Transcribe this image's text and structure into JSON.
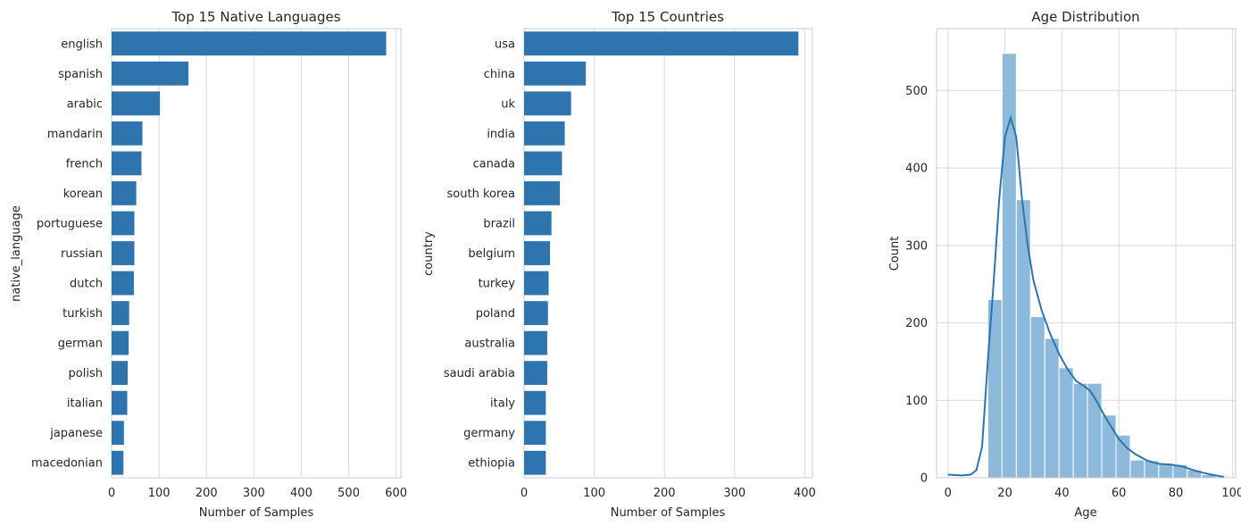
{
  "chart_data": [
    {
      "type": "bar",
      "orientation": "horizontal",
      "title": "Top 15 Native Languages",
      "xlabel": "Number of Samples",
      "ylabel": "native_language",
      "categories": [
        "english",
        "spanish",
        "arabic",
        "mandarin",
        "french",
        "korean",
        "portuguese",
        "russian",
        "dutch",
        "turkish",
        "german",
        "polish",
        "italian",
        "japanese",
        "macedonian"
      ],
      "values": [
        579,
        162,
        102,
        65,
        63,
        52,
        48,
        48,
        47,
        37,
        36,
        34,
        33,
        26,
        25
      ],
      "xlim": [
        0,
        610
      ],
      "xticks": [
        0,
        100,
        200,
        300,
        400,
        500,
        600
      ],
      "grid": true,
      "color": "#2e75b0"
    },
    {
      "type": "bar",
      "orientation": "horizontal",
      "title": "Top 15 Countries",
      "xlabel": "Number of Samples",
      "ylabel": "country",
      "categories": [
        "usa",
        "china",
        "uk",
        "india",
        "canada",
        "south korea",
        "brazil",
        "belgium",
        "turkey",
        "poland",
        "australia",
        "saudi arabia",
        "italy",
        "germany",
        "ethiopia"
      ],
      "values": [
        391,
        88,
        67,
        58,
        54,
        51,
        39,
        37,
        35,
        34,
        33,
        33,
        31,
        31,
        31
      ],
      "xlim": [
        0,
        411
      ],
      "xticks": [
        0,
        100,
        200,
        300,
        400
      ],
      "grid": true,
      "color": "#2e75b0"
    },
    {
      "type": "histogram",
      "title": "Age Distribution",
      "xlabel": "Age",
      "ylabel": "Count",
      "bins": [
        {
          "x0": 14,
          "x1": 19,
          "count": 230
        },
        {
          "x0": 19,
          "x1": 24,
          "count": 548
        },
        {
          "x0": 24,
          "x1": 29,
          "count": 359
        },
        {
          "x0": 29,
          "x1": 34,
          "count": 208
        },
        {
          "x0": 34,
          "x1": 39,
          "count": 180
        },
        {
          "x0": 39,
          "x1": 44,
          "count": 142
        },
        {
          "x0": 44,
          "x1": 49,
          "count": 122
        },
        {
          "x0": 49,
          "x1": 54,
          "count": 122
        },
        {
          "x0": 54,
          "x1": 59,
          "count": 81
        },
        {
          "x0": 59,
          "x1": 64,
          "count": 55
        },
        {
          "x0": 64,
          "x1": 69,
          "count": 23
        },
        {
          "x0": 69,
          "x1": 74,
          "count": 22
        },
        {
          "x0": 74,
          "x1": 79,
          "count": 19
        },
        {
          "x0": 79,
          "x1": 84,
          "count": 17
        },
        {
          "x0": 84,
          "x1": 89,
          "count": 10
        },
        {
          "x0": 89,
          "x1": 94,
          "count": 4
        },
        {
          "x0": 94,
          "x1": 97,
          "count": 1
        }
      ],
      "kde": [
        [
          0,
          4
        ],
        [
          5,
          3
        ],
        [
          8,
          4
        ],
        [
          10,
          10
        ],
        [
          12,
          40
        ],
        [
          14,
          150
        ],
        [
          16,
          250
        ],
        [
          18,
          360
        ],
        [
          20,
          440
        ],
        [
          22,
          465
        ],
        [
          24,
          440
        ],
        [
          26,
          360
        ],
        [
          28,
          300
        ],
        [
          30,
          255
        ],
        [
          33,
          215
        ],
        [
          36,
          185
        ],
        [
          39,
          160
        ],
        [
          42,
          140
        ],
        [
          45,
          125
        ],
        [
          48,
          118
        ],
        [
          50,
          112
        ],
        [
          52,
          100
        ],
        [
          55,
          80
        ],
        [
          58,
          62
        ],
        [
          60,
          50
        ],
        [
          63,
          38
        ],
        [
          66,
          30
        ],
        [
          70,
          22
        ],
        [
          74,
          18
        ],
        [
          78,
          17
        ],
        [
          82,
          15
        ],
        [
          86,
          10
        ],
        [
          90,
          6
        ],
        [
          94,
          3
        ],
        [
          97,
          1
        ]
      ],
      "xlim": [
        -4,
        101
      ],
      "ylim": [
        0,
        580
      ],
      "xticks": [
        0,
        20,
        40,
        60,
        80,
        100
      ],
      "yticks": [
        0,
        100,
        200,
        300,
        400,
        500
      ],
      "grid": true,
      "bar_color": "#8db9db",
      "line_color": "#2e75b0"
    }
  ]
}
